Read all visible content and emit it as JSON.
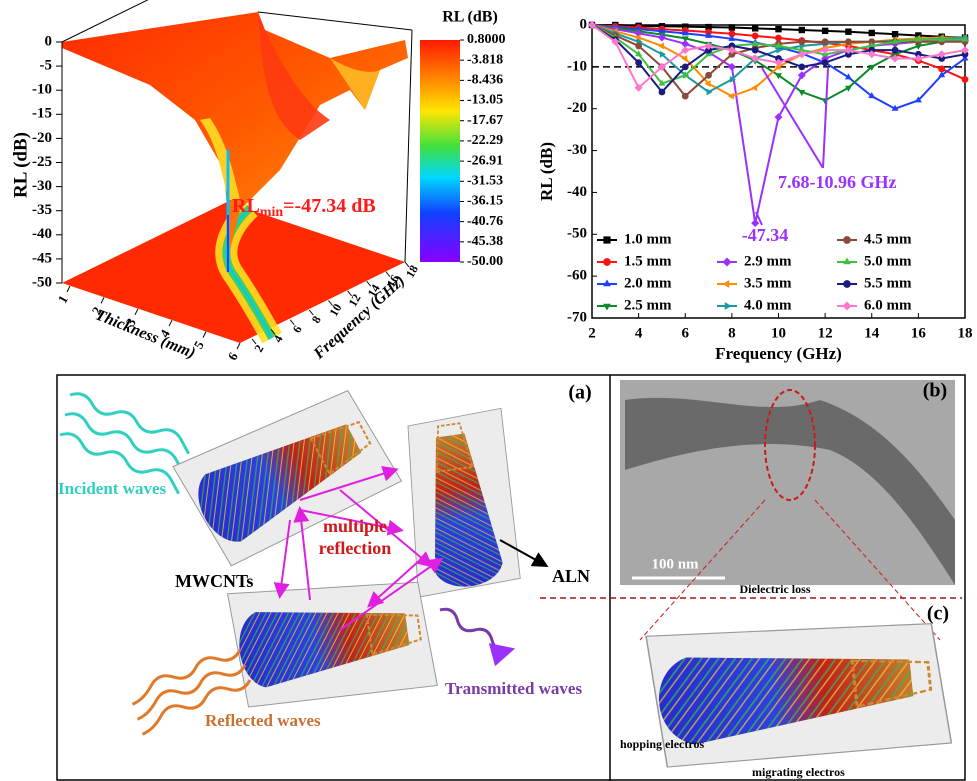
{
  "chart_data": [
    {
      "type": "surface",
      "zlabel": "RL (dB)",
      "xlabel": "Thickness (mm)",
      "ylabel": "Frequency (GHz)",
      "zlim": [
        -50,
        0
      ],
      "zticks": [
        0,
        -5,
        -10,
        -15,
        -20,
        -25,
        -30,
        -35,
        -40,
        -45,
        -50
      ],
      "xlim": [
        1,
        6
      ],
      "xticks": [
        1,
        2,
        3,
        4,
        5,
        6
      ],
      "ylim": [
        2,
        18
      ],
      "yticks": [
        2,
        4,
        6,
        8,
        10,
        12,
        14,
        16,
        18
      ],
      "colorbar": {
        "title": "RL (dB)",
        "lim": [
          -50,
          0.8
        ],
        "ticks": [
          {
            "value": 0.8,
            "label": "0.8000"
          },
          -3.818,
          -8.436,
          -13.05,
          -17.67,
          -22.29,
          -26.91,
          -31.53,
          -36.15,
          -40.76,
          -45.38,
          {
            "value": -50,
            "label": "-50.00"
          }
        ]
      },
      "annotation": {
        "base": "RL",
        "sub": "min",
        "rest": "=-47.34 dB"
      }
    },
    {
      "type": "line",
      "xlabel": "Frequency (GHz)",
      "ylabel": "RL (dB)",
      "xlim": [
        2,
        18
      ],
      "ylim": [
        -70,
        0
      ],
      "xticks": [
        2,
        4,
        6,
        8,
        10,
        12,
        14,
        16,
        18
      ],
      "yticks": [
        0,
        -10,
        -20,
        -30,
        -40,
        -50,
        -60,
        -70
      ],
      "reference_line": -10,
      "x": [
        2,
        3,
        4,
        5,
        6,
        7,
        8,
        9,
        10,
        11,
        12,
        13,
        14,
        15,
        16,
        17,
        18
      ],
      "series": [
        {
          "name": "1.0 mm",
          "color": "#000000",
          "marker": "square",
          "values": [
            0,
            0,
            -0.2,
            -0.3,
            -0.4,
            -0.5,
            -0.6,
            -0.8,
            -1,
            -1.2,
            -1.4,
            -1.6,
            -1.9,
            -2.2,
            -2.5,
            -2.8,
            -3
          ]
        },
        {
          "name": "1.5 mm",
          "color": "#ff1010",
          "marker": "circle",
          "values": [
            0,
            -0.3,
            -0.6,
            -1,
            -1.3,
            -1.7,
            -2.1,
            -2.6,
            -3.1,
            -3.7,
            -4.3,
            -5,
            -6,
            -7,
            -8.5,
            -10.5,
            -13
          ]
        },
        {
          "name": "2.0 mm",
          "color": "#1f3fff",
          "marker": "triangle",
          "values": [
            0,
            -0.5,
            -1,
            -1.5,
            -2,
            -2.6,
            -3.3,
            -4.2,
            -5.3,
            -6.8,
            -9,
            -12.5,
            -17,
            -20,
            -18,
            -12,
            -8
          ]
        },
        {
          "name": "2.5 mm",
          "color": "#0a8a2a",
          "marker": "triangle-down",
          "values": [
            0,
            -0.7,
            -1.5,
            -2.3,
            -3.2,
            -4.5,
            -6,
            -8.5,
            -12,
            -16,
            -18,
            -15,
            -10,
            -7,
            -5,
            -4,
            -3.5
          ]
        },
        {
          "name": "2.9 mm",
          "color": "#9b30ff",
          "marker": "diamond",
          "values": [
            0,
            -1,
            -2,
            -3,
            -4.5,
            -6.5,
            -10,
            -47.34,
            -22,
            -12,
            -8,
            -6,
            -5,
            -4.5,
            -4,
            -3.8,
            -3.6
          ]
        },
        {
          "name": "3.5 mm",
          "color": "#ff8c00",
          "marker": "triangle-left",
          "values": [
            0,
            -1.5,
            -3,
            -5,
            -8,
            -14,
            -17,
            -15,
            -10,
            -7,
            -5.5,
            -4.5,
            -4,
            -3.5,
            -3.2,
            -3,
            -3
          ]
        },
        {
          "name": "4.0 mm",
          "color": "#1a9aa0",
          "marker": "triangle-right",
          "values": [
            0,
            -2,
            -4,
            -7,
            -12,
            -16,
            -13,
            -8,
            -6,
            -5,
            -4.5,
            -4,
            -4,
            -3.8,
            -3.5,
            -3.3,
            -3
          ]
        },
        {
          "name": "4.5 mm",
          "color": "#8b4a3a",
          "marker": "circle",
          "values": [
            0,
            -2.5,
            -5,
            -10,
            -17,
            -12,
            -7,
            -5.5,
            -4.5,
            -4,
            -4,
            -4,
            -4,
            -4,
            -4,
            -4,
            -4
          ]
        },
        {
          "name": "5.0 mm",
          "color": "#40c040",
          "marker": "triangle",
          "values": [
            0,
            -3,
            -7,
            -14,
            -12,
            -7,
            -5,
            -4.5,
            -5,
            -6,
            -7,
            -6,
            -5,
            -4,
            -3.5,
            -3.5,
            -3.5
          ]
        },
        {
          "name": "5.5 mm",
          "color": "#1a1a80",
          "marker": "circle",
          "values": [
            0,
            -3.5,
            -9,
            -16,
            -10,
            -6,
            -5,
            -6,
            -8,
            -10,
            -9,
            -7,
            -6,
            -6,
            -7,
            -8,
            -7
          ]
        },
        {
          "name": "6.0 mm",
          "color": "#ff77cc",
          "marker": "diamond",
          "values": [
            0,
            -4,
            -15,
            -10,
            -6,
            -5,
            -6,
            -8,
            -9,
            -7,
            -6,
            -6,
            -7,
            -8,
            -8,
            -7,
            -6
          ]
        }
      ],
      "annotations": [
        "7.68-10.96 GHz",
        "-47.34"
      ]
    }
  ],
  "diagram": {
    "panel_labels": [
      "(a)",
      "(b)",
      "(c)"
    ],
    "incident": "Incident waves",
    "multiple_reflection": [
      "multiple",
      "reflection"
    ],
    "mwcnts": "MWCNTs",
    "aln": "ALN",
    "reflected": "Reflected waves",
    "transmitted": "Transmitted waves",
    "scale_bar": "100 nm",
    "dielectric_loss": "Dielectric loss",
    "hopping": "hopping electros",
    "migrating": "migrating electros"
  }
}
